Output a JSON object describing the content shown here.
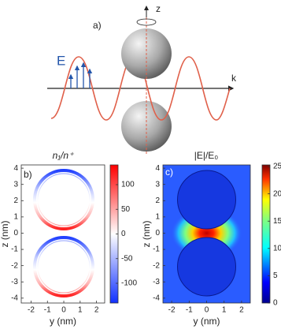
{
  "panel_a": {
    "label": "a)",
    "z_axis": "z",
    "k_axis": "k",
    "field": "E"
  },
  "panel_b": {
    "label": "b)",
    "title": "n₁/n⁺",
    "xlabel": "y (nm)",
    "ylabel": "z (nm)",
    "xlim": [
      -2.6,
      2.5
    ],
    "xticks": [
      -2,
      -1,
      0,
      1,
      2
    ],
    "ylim": [
      -4.3,
      4.2
    ],
    "yticks": [
      -4,
      -3,
      -2,
      -1,
      0,
      1,
      2,
      3,
      4
    ],
    "clim": [
      -140,
      140
    ],
    "cticks": [
      -100,
      -50,
      0,
      50,
      100
    ]
  },
  "panel_c": {
    "label": "c)",
    "title": "|E|/E₀",
    "xlabel": "y (nm)",
    "ylabel": "z (nm)",
    "xlim": [
      -2.5,
      2.5
    ],
    "xticks": [
      -2,
      -1,
      0,
      1,
      2
    ],
    "ylim": [
      -4.3,
      4.2
    ],
    "yticks": [
      -4,
      -3,
      -2,
      -1,
      0,
      1,
      2,
      3,
      4
    ],
    "clim": [
      0,
      25.3
    ],
    "cticks": [
      0,
      5,
      10,
      15,
      20,
      25
    ]
  }
}
